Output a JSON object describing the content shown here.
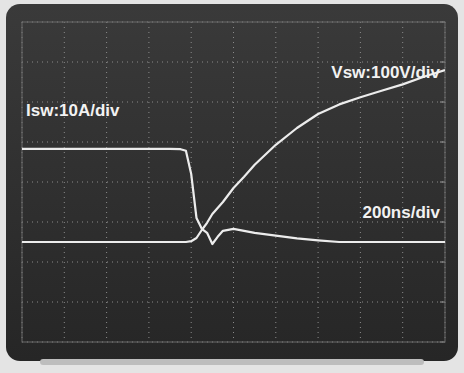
{
  "chart_data": {
    "type": "line",
    "x": [
      0,
      200,
      400,
      600,
      700,
      750,
      775,
      800,
      825,
      850,
      875,
      900,
      925,
      950,
      1000,
      1050,
      1100,
      1200,
      1300,
      1400,
      1500,
      1600,
      1700,
      1800,
      1900,
      2000
    ],
    "series": [
      {
        "name": "Isw:10A/div",
        "color": "#ececec",
        "values": [
          23.3,
          23.3,
          23.3,
          23.3,
          23.3,
          23.2,
          22.8,
          17,
          6,
          3.3,
          2.3,
          -0.5,
          1.3,
          2.8,
          3.3,
          2.8,
          2.3,
          1.6,
          0.9,
          0.4,
          0,
          0,
          0,
          0,
          0,
          0
        ]
      },
      {
        "name": "Vsw:100V/div",
        "color": "#ececec",
        "axis": "y2",
        "values": [
          0,
          0,
          0,
          0,
          0,
          0,
          0,
          2,
          10,
          30,
          48,
          70,
          85,
          100,
          135,
          163,
          193,
          243,
          285,
          320,
          344,
          362,
          378,
          394,
          413,
          430
        ]
      }
    ],
    "annotations": [
      {
        "text": "200ns/div"
      }
    ],
    "xlim": [
      0,
      2000
    ],
    "xticks": [
      0,
      200,
      400,
      600,
      800,
      1000,
      1200,
      1400,
      1600,
      1800,
      2000
    ],
    "ylim": [
      -25,
      55
    ],
    "yticks": [
      -25,
      -15,
      -5,
      5,
      15,
      25,
      35,
      45,
      55
    ],
    "y2lim": [
      -250,
      550
    ],
    "y2ticks": [
      -250,
      -150,
      -50,
      50,
      150,
      250,
      350,
      450,
      550
    ],
    "grid": true,
    "tick_labels": false
  }
}
